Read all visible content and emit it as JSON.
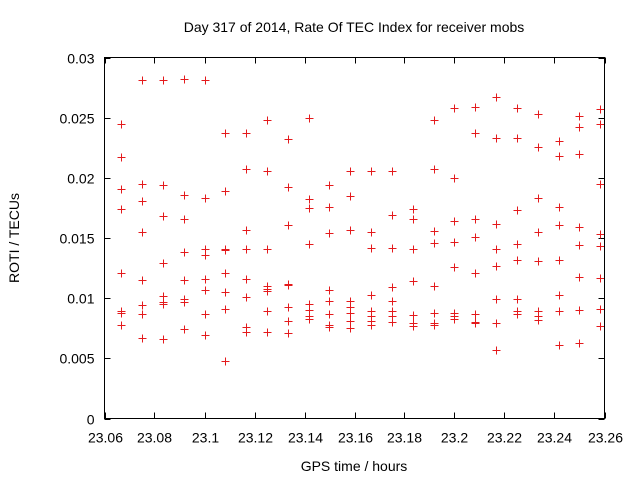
{
  "chart_data": {
    "type": "scatter",
    "title": "Day 317 of 2014, Rate Of TEC Index for receiver mobs",
    "xlabel": "GPS time / hours",
    "ylabel": "ROTI / TECUs",
    "xlim": [
      23.06,
      23.26
    ],
    "ylim": [
      0,
      0.03
    ],
    "xticks": [
      23.06,
      23.08,
      23.1,
      23.12,
      23.14,
      23.16,
      23.18,
      23.2,
      23.22,
      23.24,
      23.26
    ],
    "xtick_labels": [
      "23.06",
      "23.08",
      "23.1",
      "23.12",
      "23.14",
      "23.16",
      "23.18",
      "23.2",
      "23.22",
      "23.24",
      "23.26"
    ],
    "yticks": [
      0,
      0.005,
      0.01,
      0.015,
      0.02,
      0.025,
      0.03
    ],
    "ytick_labels": [
      "0",
      "0.005",
      "0.01",
      "0.015",
      "0.02",
      "0.025",
      "0.03"
    ],
    "grid": false,
    "marker": "+",
    "marker_color": "#e41a1c",
    "series": [
      {
        "name": "ROTI",
        "points": [
          [
            23.0667,
            0.0245
          ],
          [
            23.0667,
            0.0217
          ],
          [
            23.0667,
            0.0191
          ],
          [
            23.0667,
            0.0174
          ],
          [
            23.0667,
            0.0121
          ],
          [
            23.0667,
            0.0089
          ],
          [
            23.0667,
            0.0088
          ],
          [
            23.0667,
            0.0078
          ],
          [
            23.075,
            0.0281
          ],
          [
            23.075,
            0.0195
          ],
          [
            23.075,
            0.0181
          ],
          [
            23.075,
            0.0155
          ],
          [
            23.075,
            0.0115
          ],
          [
            23.075,
            0.0094
          ],
          [
            23.075,
            0.0087
          ],
          [
            23.075,
            0.0067
          ],
          [
            23.0833,
            0.0281
          ],
          [
            23.0833,
            0.0194
          ],
          [
            23.0833,
            0.0168
          ],
          [
            23.0833,
            0.0129
          ],
          [
            23.0833,
            0.0102
          ],
          [
            23.0833,
            0.0097
          ],
          [
            23.0833,
            0.0095
          ],
          [
            23.0833,
            0.0066
          ],
          [
            23.0917,
            0.0282
          ],
          [
            23.0917,
            0.0186
          ],
          [
            23.0917,
            0.0166
          ],
          [
            23.0917,
            0.0138
          ],
          [
            23.0917,
            0.0115
          ],
          [
            23.0917,
            0.0099
          ],
          [
            23.0917,
            0.0097
          ],
          [
            23.0917,
            0.0074
          ],
          [
            23.1,
            0.0281
          ],
          [
            23.1,
            0.0183
          ],
          [
            23.1,
            0.0141
          ],
          [
            23.1,
            0.0136
          ],
          [
            23.1,
            0.0116
          ],
          [
            23.1,
            0.0107
          ],
          [
            23.1,
            0.0087
          ],
          [
            23.1,
            0.0069
          ],
          [
            23.1083,
            0.0237
          ],
          [
            23.1083,
            0.0189
          ],
          [
            23.1083,
            0.0141
          ],
          [
            23.1083,
            0.014
          ],
          [
            23.1083,
            0.0121
          ],
          [
            23.1083,
            0.0105
          ],
          [
            23.1083,
            0.0091
          ],
          [
            23.1083,
            0.0048
          ],
          [
            23.1167,
            0.0237
          ],
          [
            23.1167,
            0.0207
          ],
          [
            23.1167,
            0.0157
          ],
          [
            23.1167,
            0.0141
          ],
          [
            23.1167,
            0.0116
          ],
          [
            23.1167,
            0.0101
          ],
          [
            23.1167,
            0.0076
          ],
          [
            23.1167,
            0.0072
          ],
          [
            23.125,
            0.0248
          ],
          [
            23.125,
            0.0206
          ],
          [
            23.125,
            0.0141
          ],
          [
            23.125,
            0.011
          ],
          [
            23.125,
            0.0108
          ],
          [
            23.125,
            0.0106
          ],
          [
            23.125,
            0.0089
          ],
          [
            23.125,
            0.0072
          ],
          [
            23.1333,
            0.0232
          ],
          [
            23.1333,
            0.0192
          ],
          [
            23.1333,
            0.0161
          ],
          [
            23.1333,
            0.0112
          ],
          [
            23.1333,
            0.0111
          ],
          [
            23.1333,
            0.0093
          ],
          [
            23.1333,
            0.0081
          ],
          [
            23.1333,
            0.0071
          ],
          [
            23.1417,
            0.025
          ],
          [
            23.1417,
            0.0182
          ],
          [
            23.1417,
            0.0175
          ],
          [
            23.1417,
            0.0145
          ],
          [
            23.1417,
            0.0095
          ],
          [
            23.1417,
            0.009
          ],
          [
            23.1417,
            0.0085
          ],
          [
            23.1417,
            0.0083
          ],
          [
            23.15,
            0.0194
          ],
          [
            23.15,
            0.0176
          ],
          [
            23.15,
            0.0154
          ],
          [
            23.15,
            0.0107
          ],
          [
            23.15,
            0.0098
          ],
          [
            23.15,
            0.0087
          ],
          [
            23.15,
            0.0078
          ],
          [
            23.15,
            0.0076
          ],
          [
            23.1583,
            0.0206
          ],
          [
            23.1583,
            0.0185
          ],
          [
            23.1583,
            0.0157
          ],
          [
            23.1583,
            0.0098
          ],
          [
            23.1583,
            0.0093
          ],
          [
            23.1583,
            0.0088
          ],
          [
            23.1583,
            0.0081
          ],
          [
            23.1583,
            0.0075
          ],
          [
            23.1667,
            0.0206
          ],
          [
            23.1667,
            0.0155
          ],
          [
            23.1667,
            0.0142
          ],
          [
            23.1667,
            0.0103
          ],
          [
            23.1667,
            0.0089
          ],
          [
            23.1667,
            0.0085
          ],
          [
            23.1667,
            0.0081
          ],
          [
            23.1667,
            0.0078
          ],
          [
            23.175,
            0.0206
          ],
          [
            23.175,
            0.0169
          ],
          [
            23.175,
            0.0142
          ],
          [
            23.175,
            0.0109
          ],
          [
            23.175,
            0.0098
          ],
          [
            23.175,
            0.0089
          ],
          [
            23.175,
            0.0085
          ],
          [
            23.175,
            0.008
          ],
          [
            23.1833,
            0.0174
          ],
          [
            23.1833,
            0.0166
          ],
          [
            23.1833,
            0.0141
          ],
          [
            23.1833,
            0.0114
          ],
          [
            23.1833,
            0.0114
          ],
          [
            23.1833,
            0.0086
          ],
          [
            23.1833,
            0.0079
          ],
          [
            23.1833,
            0.0077
          ],
          [
            23.1917,
            0.0248
          ],
          [
            23.1917,
            0.0207
          ],
          [
            23.1917,
            0.0156
          ],
          [
            23.1917,
            0.0146
          ],
          [
            23.1917,
            0.011
          ],
          [
            23.1917,
            0.0088
          ],
          [
            23.1917,
            0.0079
          ],
          [
            23.1917,
            0.0078
          ],
          [
            23.2,
            0.0258
          ],
          [
            23.2,
            0.02
          ],
          [
            23.2,
            0.0164
          ],
          [
            23.2,
            0.0147
          ],
          [
            23.2,
            0.0126
          ],
          [
            23.2,
            0.0088
          ],
          [
            23.2,
            0.0085
          ],
          [
            23.2,
            0.0083
          ],
          [
            23.2083,
            0.0259
          ],
          [
            23.2083,
            0.0237
          ],
          [
            23.2083,
            0.0166
          ],
          [
            23.2083,
            0.0151
          ],
          [
            23.2083,
            0.0121
          ],
          [
            23.2083,
            0.0087
          ],
          [
            23.2083,
            0.008
          ],
          [
            23.2083,
            0.0079
          ],
          [
            23.2167,
            0.0267
          ],
          [
            23.2167,
            0.0233
          ],
          [
            23.2167,
            0.0162
          ],
          [
            23.2167,
            0.0141
          ],
          [
            23.2167,
            0.0127
          ],
          [
            23.2167,
            0.0099
          ],
          [
            23.2167,
            0.0079
          ],
          [
            23.2167,
            0.0057
          ],
          [
            23.225,
            0.0258
          ],
          [
            23.225,
            0.0233
          ],
          [
            23.225,
            0.0173
          ],
          [
            23.225,
            0.0145
          ],
          [
            23.225,
            0.0132
          ],
          [
            23.225,
            0.0099
          ],
          [
            23.225,
            0.0089
          ],
          [
            23.225,
            0.0087
          ],
          [
            23.2333,
            0.0253
          ],
          [
            23.2333,
            0.0226
          ],
          [
            23.2333,
            0.0183
          ],
          [
            23.2333,
            0.0155
          ],
          [
            23.2333,
            0.0131
          ],
          [
            23.2333,
            0.0089
          ],
          [
            23.2333,
            0.0085
          ],
          [
            23.2333,
            0.0082
          ],
          [
            23.2417,
            0.0231
          ],
          [
            23.2417,
            0.0218
          ],
          [
            23.2417,
            0.0176
          ],
          [
            23.2417,
            0.0161
          ],
          [
            23.2417,
            0.0132
          ],
          [
            23.2417,
            0.0103
          ],
          [
            23.2417,
            0.0089
          ],
          [
            23.2417,
            0.0061
          ],
          [
            23.25,
            0.0251
          ],
          [
            23.25,
            0.0242
          ],
          [
            23.25,
            0.022
          ],
          [
            23.25,
            0.0159
          ],
          [
            23.25,
            0.0144
          ],
          [
            23.25,
            0.0118
          ],
          [
            23.25,
            0.009
          ],
          [
            23.25,
            0.0063
          ],
          [
            23.2583,
            0.0257
          ],
          [
            23.2583,
            0.0245
          ],
          [
            23.2583,
            0.0195
          ],
          [
            23.2583,
            0.0153
          ],
          [
            23.2583,
            0.0143
          ],
          [
            23.2583,
            0.0117
          ],
          [
            23.2583,
            0.0091
          ],
          [
            23.2583,
            0.0077
          ]
        ]
      }
    ]
  }
}
